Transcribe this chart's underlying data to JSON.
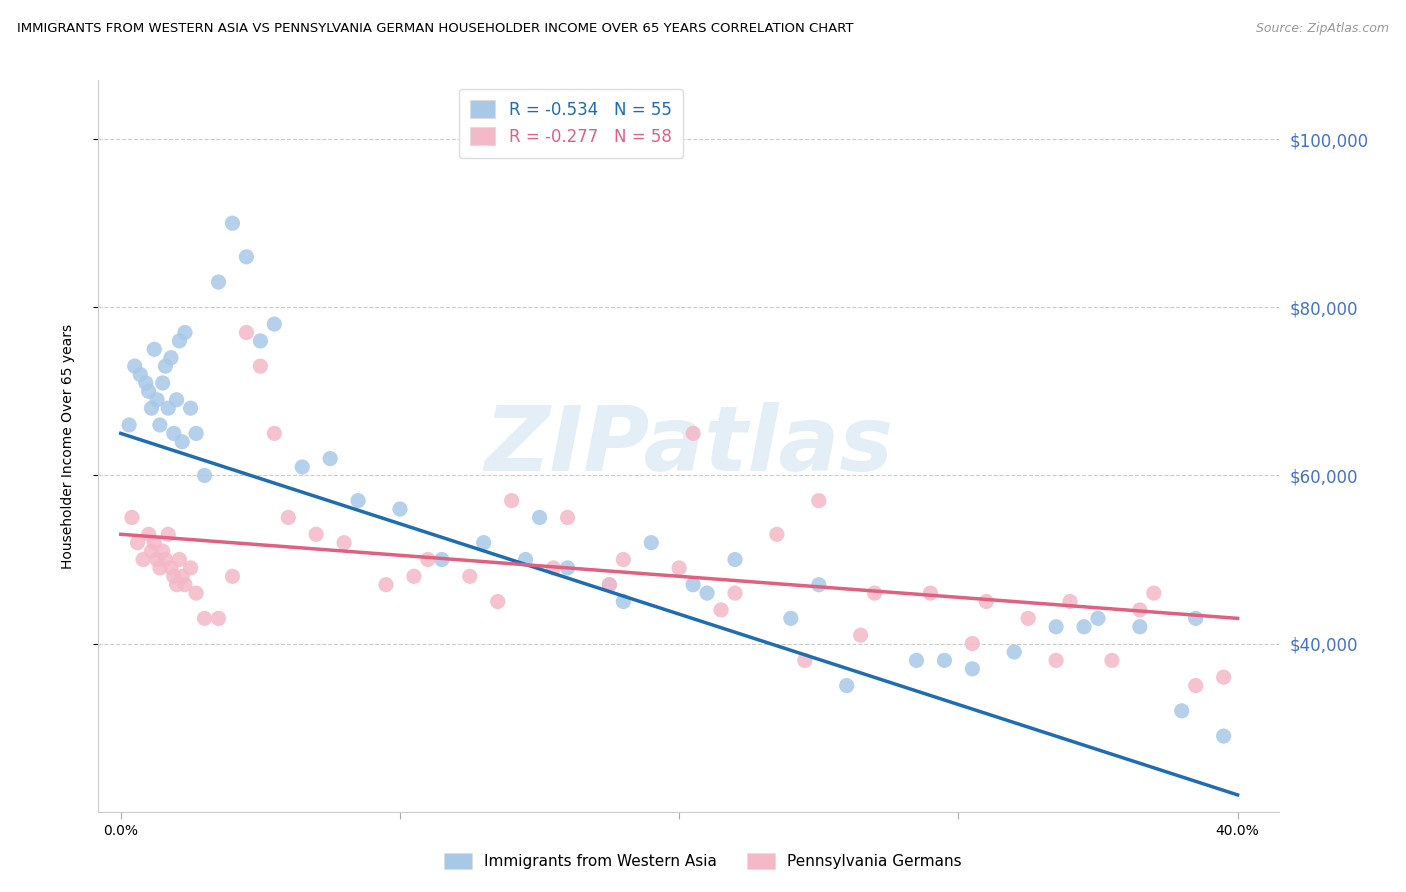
{
  "title": "IMMIGRANTS FROM WESTERN ASIA VS PENNSYLVANIA GERMAN HOUSEHOLDER INCOME OVER 65 YEARS CORRELATION CHART",
  "source": "Source: ZipAtlas.com",
  "ylabel": "Householder Income Over 65 years",
  "xlabel_ticks": [
    "0.0%",
    "",
    "",
    "",
    "40.0%"
  ],
  "xlabel_vals": [
    0.0,
    10.0,
    20.0,
    30.0,
    40.0
  ],
  "ytick_labels": [
    "$40,000",
    "$60,000",
    "$80,000",
    "$100,000"
  ],
  "ytick_vals": [
    40000,
    60000,
    80000,
    100000
  ],
  "blue_scatter_color": "#a8c8e8",
  "pink_scatter_color": "#f4b8c8",
  "blue_line_color": "#1f6cb0",
  "pink_line_color": "#e06080",
  "ytick_color": "#4472c4",
  "legend_blue_r": "R = -0.534",
  "legend_blue_n": "N = 55",
  "legend_pink_r": "R = -0.277",
  "legend_pink_n": "N = 58",
  "watermark": "ZIPatlas",
  "blue_scatter_x": [
    0.3,
    0.5,
    0.7,
    0.9,
    1.0,
    1.1,
    1.2,
    1.3,
    1.4,
    1.5,
    1.6,
    1.7,
    1.8,
    1.9,
    2.0,
    2.1,
    2.2,
    2.3,
    2.5,
    2.7,
    3.0,
    3.5,
    4.0,
    4.5,
    5.0,
    5.5,
    6.5,
    7.5,
    8.5,
    10.0,
    11.5,
    13.0,
    14.5,
    16.0,
    17.5,
    19.0,
    20.5,
    22.0,
    24.0,
    26.0,
    28.5,
    30.5,
    32.0,
    33.5,
    35.0,
    36.5,
    38.0,
    39.5,
    15.0,
    18.0,
    21.0,
    25.0,
    29.5,
    34.5,
    38.5
  ],
  "blue_scatter_y": [
    66000,
    73000,
    72000,
    71000,
    70000,
    68000,
    75000,
    69000,
    66000,
    71000,
    73000,
    68000,
    74000,
    65000,
    69000,
    76000,
    64000,
    77000,
    68000,
    65000,
    60000,
    83000,
    90000,
    86000,
    76000,
    78000,
    61000,
    62000,
    57000,
    56000,
    50000,
    52000,
    50000,
    49000,
    47000,
    52000,
    47000,
    50000,
    43000,
    35000,
    38000,
    37000,
    39000,
    42000,
    43000,
    42000,
    32000,
    29000,
    55000,
    45000,
    46000,
    47000,
    38000,
    42000,
    43000
  ],
  "pink_scatter_x": [
    0.4,
    0.6,
    0.8,
    1.0,
    1.1,
    1.2,
    1.3,
    1.4,
    1.5,
    1.6,
    1.7,
    1.8,
    1.9,
    2.0,
    2.1,
    2.2,
    2.3,
    2.5,
    2.7,
    3.0,
    3.5,
    4.0,
    4.5,
    5.0,
    5.5,
    6.0,
    7.0,
    8.0,
    9.5,
    11.0,
    12.5,
    14.0,
    16.0,
    18.0,
    20.0,
    22.0,
    23.5,
    25.0,
    27.0,
    29.0,
    31.0,
    32.5,
    34.0,
    35.5,
    37.0,
    38.5,
    10.5,
    13.5,
    15.5,
    17.5,
    21.5,
    24.5,
    26.5,
    30.5,
    33.5,
    36.5,
    39.5,
    20.5
  ],
  "pink_scatter_y": [
    55000,
    52000,
    50000,
    53000,
    51000,
    52000,
    50000,
    49000,
    51000,
    50000,
    53000,
    49000,
    48000,
    47000,
    50000,
    48000,
    47000,
    49000,
    46000,
    43000,
    43000,
    48000,
    77000,
    73000,
    65000,
    55000,
    53000,
    52000,
    47000,
    50000,
    48000,
    57000,
    55000,
    50000,
    49000,
    46000,
    53000,
    57000,
    46000,
    46000,
    45000,
    43000,
    45000,
    38000,
    46000,
    35000,
    48000,
    45000,
    49000,
    47000,
    44000,
    38000,
    41000,
    40000,
    38000,
    44000,
    36000,
    65000
  ],
  "xlim": [
    -0.8,
    41.5
  ],
  "ylim": [
    20000,
    107000
  ],
  "blue_trendline_x0": 0.0,
  "blue_trendline_y0": 65000,
  "blue_trendline_x1": 40.0,
  "blue_trendline_y1": 22000,
  "pink_trendline_x0": 0.0,
  "pink_trendline_y0": 53000,
  "pink_trendline_x1": 40.0,
  "pink_trendline_y1": 43000
}
